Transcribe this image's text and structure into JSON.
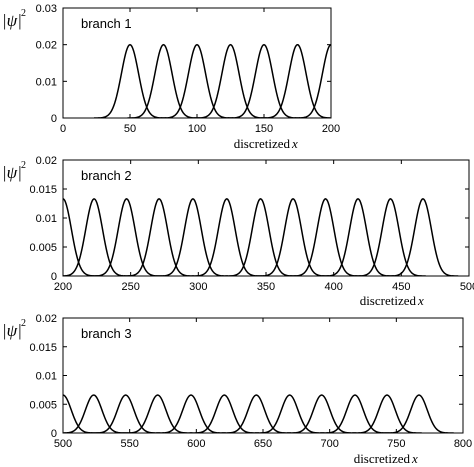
{
  "chart_data": [
    {
      "type": "line",
      "title": "branch 1",
      "xlabel": "discretized",
      "xlabel_var": "x",
      "ylabel": "|ψ|",
      "ylabel_sup": "2",
      "xlim": [
        0,
        200
      ],
      "ylim": [
        0,
        0.03
      ],
      "xticks": [
        "0",
        "50",
        "100",
        "150",
        "200"
      ],
      "yticks": [
        "0",
        "0.01",
        "0.02",
        "0.03"
      ],
      "peak_centers": [
        50,
        75,
        100,
        125,
        150,
        175,
        200
      ],
      "peak_height": 0.02,
      "peak_sigma": 6.4
    },
    {
      "type": "line",
      "title": "branch 2",
      "xlabel": "discretized",
      "xlabel_var": "x",
      "ylabel": "|ψ|",
      "ylabel_sup": "2",
      "xlim": [
        200,
        500
      ],
      "ylim": [
        0,
        0.02
      ],
      "xticks": [
        "200",
        "250",
        "300",
        "350",
        "400",
        "450",
        "500"
      ],
      "yticks": [
        "0",
        "0.005",
        "0.01",
        "0.015",
        "0.02"
      ],
      "peak_centers": [
        200,
        223,
        247,
        271,
        296,
        321,
        346,
        370,
        394,
        418,
        442,
        466
      ],
      "peak_height": 0.0133,
      "peak_sigma": 6.2
    },
    {
      "type": "line",
      "title": "branch 3",
      "xlabel": "discretized",
      "xlabel_var": "x",
      "ylabel": "|ψ|",
      "ylabel_sup": "2",
      "xlim": [
        500,
        800
      ],
      "ylim": [
        0,
        0.02
      ],
      "xticks": [
        "500",
        "550",
        "600",
        "650",
        "700",
        "750",
        "800"
      ],
      "yticks": [
        "0",
        "0.005",
        "0.01",
        "0.015",
        "0.02"
      ],
      "peak_centers": [
        500,
        523,
        547,
        571,
        596,
        621,
        645,
        670,
        694,
        719,
        743,
        767
      ],
      "peak_height": 0.0066,
      "peak_sigma": 6.2
    }
  ]
}
